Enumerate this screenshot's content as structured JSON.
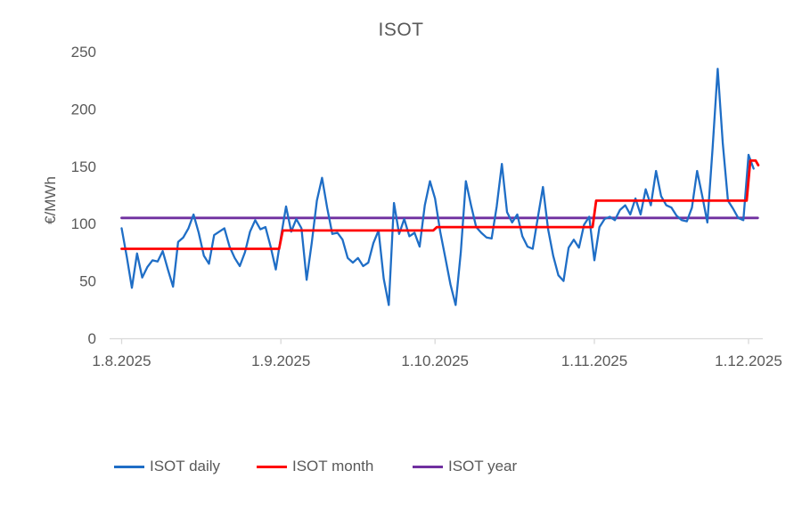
{
  "title": "ISOT",
  "legend": [
    {
      "label": "ISOT daily",
      "color": "#1F6EC6"
    },
    {
      "label": "ISOT month",
      "color": "#FF0000"
    },
    {
      "label": "ISOT year",
      "color": "#7030A0"
    }
  ],
  "colors": {
    "text": "#595959",
    "axis": "#D9D9D9",
    "background": "#FFFFFF"
  },
  "chart_data": {
    "type": "line",
    "title": "ISOT",
    "xlabel": "",
    "ylabel": "€/MWh",
    "ylim": [
      0,
      250
    ],
    "y_ticks": [
      0,
      50,
      100,
      150,
      200,
      250
    ],
    "x_tick_labels": [
      "1.8.2025",
      "1.9.2025",
      "1.10.2025",
      "1.11.2025",
      "1.12.2025"
    ],
    "x_tick_days": [
      0,
      31,
      61,
      92,
      122
    ],
    "grid": false,
    "legend_position": "bottom",
    "x_unit": "days from 1.8.2025",
    "series": [
      {
        "name": "ISOT daily",
        "color": "#1F6EC6",
        "style": "line",
        "values": [
          96,
          71,
          44,
          74,
          53,
          62,
          68,
          67,
          76,
          60,
          45,
          84,
          88,
          96,
          108,
          92,
          72,
          65,
          90,
          93,
          96,
          80,
          70,
          63,
          75,
          93,
          103,
          95,
          97,
          80,
          60,
          88,
          115,
          93,
          104,
          96,
          51,
          83,
          120,
          140,
          114,
          91,
          92,
          86,
          70,
          66,
          70,
          63,
          66,
          83,
          94,
          52,
          29,
          118,
          91,
          104,
          89,
          92,
          80,
          116,
          137,
          122,
          93,
          70,
          47,
          29,
          75,
          137,
          116,
          97,
          92,
          88,
          87,
          115,
          152,
          110,
          101,
          108,
          89,
          80,
          78,
          105,
          132,
          95,
          72,
          55,
          50,
          79,
          86,
          79,
          99,
          106,
          68,
          97,
          104,
          106,
          103,
          112,
          116,
          108,
          122,
          108,
          130,
          116,
          146,
          124,
          116,
          114,
          107,
          103,
          102,
          114,
          146,
          124,
          101,
          165,
          235,
          170,
          120,
          113,
          105,
          103,
          160,
          148
        ]
      },
      {
        "name": "ISOT month",
        "color": "#FF0000",
        "style": "step",
        "segments": [
          {
            "period": "8.2025",
            "value": 78
          },
          {
            "period": "9.2025",
            "value": 94
          },
          {
            "period": "10.2025",
            "value": 97
          },
          {
            "period": "11.2025",
            "value": 120
          },
          {
            "period": "12.2025",
            "value": 155
          }
        ]
      },
      {
        "name": "ISOT year",
        "color": "#7030A0",
        "style": "constant",
        "value": 105
      }
    ]
  }
}
